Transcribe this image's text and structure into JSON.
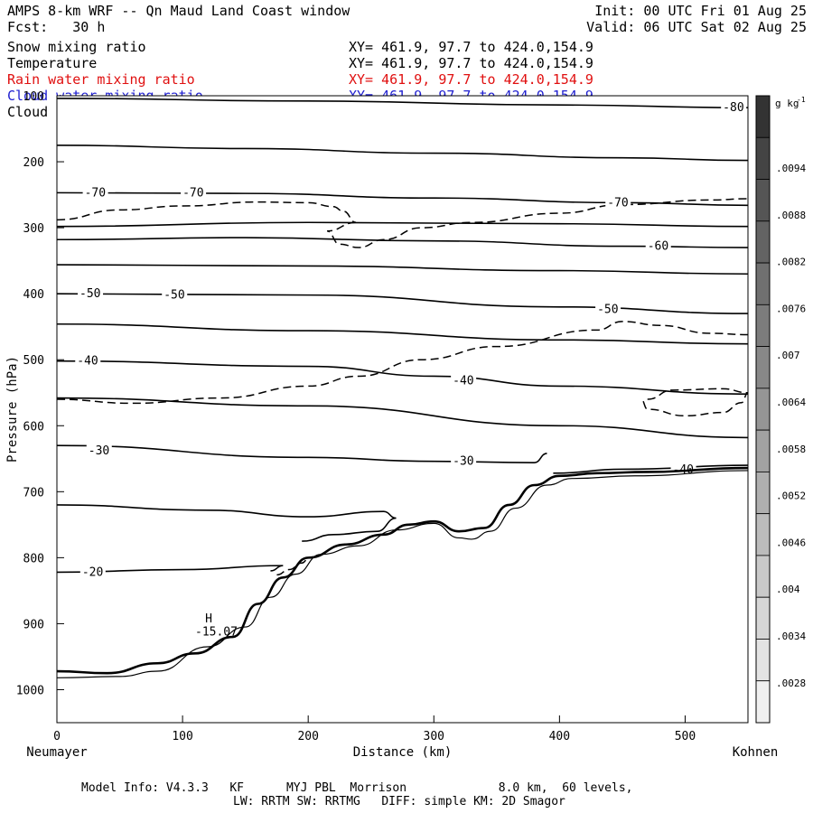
{
  "header": {
    "title": "AMPS 8-km WRF -- Qn Maud Land Coast window",
    "init": "Init: 00 UTC Fri 01 Aug 25",
    "fcst": "Fcst:   30 h",
    "valid": "Valid: 06 UTC Sat 02 Aug 25"
  },
  "fields": [
    {
      "name": "Snow mixing ratio",
      "xy": "XY= 461.9, 97.7 to 424.0,154.9",
      "color": "#000000"
    },
    {
      "name": "Temperature",
      "xy": "XY= 461.9, 97.7 to 424.0,154.9",
      "color": "#000000"
    },
    {
      "name": "Rain water mixing ratio",
      "xy": "XY= 461.9, 97.7 to 424.0,154.9",
      "color": "#e01010"
    },
    {
      "name": "Cloud water mixing ratio",
      "xy": "XY= 461.9, 97.7 to 424.0,154.9",
      "color": "#2020d0"
    },
    {
      "name": "Cloud ice mixing ratio",
      "xy": "XY= 461.9, 97.7 to 424.0,154.9",
      "color": "#000000"
    }
  ],
  "footer": {
    "line1": "Model Info: V4.3.3   KF      MYJ PBL  Morrison             8.0 km,  60 levels,",
    "line2": "LW: RRTM SW: RRTMG   DIFF: simple KM: 2D Smagor"
  },
  "chart_data": {
    "type": "contour",
    "xlabel": "Distance (km)",
    "ylabel": "Pressure (hPa)",
    "xlim": [
      0,
      550
    ],
    "ylim": [
      1050,
      100
    ],
    "x_ticks": [
      0,
      100,
      200,
      300,
      400,
      500
    ],
    "y_ticks": [
      100,
      200,
      300,
      400,
      500,
      600,
      700,
      800,
      900,
      1000
    ],
    "x_end_labels": {
      "left": "Neumayer",
      "right": "Kohnen"
    },
    "colorbar": {
      "unit": "g kg",
      "unit_exp": "-1",
      "ticks": [
        ".0094",
        ".0088",
        ".0082",
        ".0076",
        ".007",
        ".0064",
        ".0058",
        ".0052",
        ".0046",
        ".004",
        ".0034",
        ".0028"
      ],
      "grays": [
        "#333333",
        "#444444",
        "#555555",
        "#636363",
        "#707070",
        "#7c7c7c",
        "#888888",
        "#959595",
        "#a2a2a2",
        "#afafaf",
        "#bcbcbc",
        "#c9c9c9",
        "#d6d6d6",
        "#e3e3e3",
        "#f0f0f0"
      ]
    },
    "isotherms": [
      {
        "label": "-80",
        "points": [
          [
            0,
            104
          ],
          [
            200,
            108
          ],
          [
            400,
            114
          ],
          [
            550,
            118
          ]
        ],
        "label_at": [
          [
            530,
            118
          ]
        ]
      },
      {
        "label": "",
        "points": [
          [
            0,
            175
          ],
          [
            150,
            180
          ],
          [
            300,
            187
          ],
          [
            450,
            194
          ],
          [
            550,
            198
          ]
        ],
        "label_at": []
      },
      {
        "label": "-70",
        "points": [
          [
            0,
            247
          ],
          [
            150,
            248
          ],
          [
            300,
            255
          ],
          [
            450,
            262
          ],
          [
            550,
            266
          ]
        ],
        "label_at": [
          [
            22,
            247
          ],
          [
            100,
            247
          ],
          [
            438,
            262
          ]
        ]
      },
      {
        "label": "",
        "points": [
          [
            0,
            298
          ],
          [
            200,
            292
          ],
          [
            400,
            294
          ],
          [
            550,
            298
          ]
        ],
        "label_at": []
      },
      {
        "label": "-60",
        "points": [
          [
            0,
            318
          ],
          [
            150,
            315
          ],
          [
            300,
            320
          ],
          [
            450,
            328
          ],
          [
            550,
            330
          ]
        ],
        "label_at": [
          [
            470,
            328
          ]
        ]
      },
      {
        "label": "",
        "points": [
          [
            0,
            356
          ],
          [
            200,
            358
          ],
          [
            400,
            365
          ],
          [
            550,
            370
          ]
        ],
        "label_at": []
      },
      {
        "label": "-50",
        "points": [
          [
            0,
            400
          ],
          [
            200,
            402
          ],
          [
            400,
            420
          ],
          [
            550,
            430
          ]
        ],
        "label_at": [
          [
            18,
            400
          ],
          [
            85,
            402
          ],
          [
            430,
            424
          ]
        ]
      },
      {
        "label": "",
        "points": [
          [
            0,
            446
          ],
          [
            200,
            456
          ],
          [
            400,
            470
          ],
          [
            550,
            476
          ]
        ],
        "label_at": []
      },
      {
        "label": "-40",
        "points": [
          [
            0,
            502
          ],
          [
            200,
            510
          ],
          [
            300,
            525
          ],
          [
            400,
            540
          ],
          [
            550,
            552
          ]
        ],
        "label_at": [
          [
            16,
            502
          ],
          [
            315,
            532
          ]
        ]
      },
      {
        "label": "",
        "points": [
          [
            0,
            558
          ],
          [
            200,
            570
          ],
          [
            400,
            600
          ],
          [
            550,
            618
          ]
        ],
        "label_at": []
      },
      {
        "label": "-30",
        "points": [
          [
            0,
            630
          ],
          [
            200,
            648
          ],
          [
            300,
            654
          ],
          [
            380,
            656
          ],
          [
            390,
            642
          ]
        ],
        "label_at": [
          [
            25,
            638
          ],
          [
            315,
            654
          ]
        ]
      },
      {
        "label": "-40",
        "points": [
          [
            395,
            672
          ],
          [
            450,
            666
          ],
          [
            550,
            660
          ]
        ],
        "label_at": [
          [
            490,
            667
          ]
        ]
      },
      {
        "label": "",
        "points": [
          [
            0,
            720
          ],
          [
            120,
            728
          ],
          [
            200,
            738
          ],
          [
            260,
            730
          ],
          [
            270,
            740
          ],
          [
            255,
            760
          ],
          [
            220,
            765
          ],
          [
            195,
            775
          ]
        ],
        "label_at": []
      },
      {
        "label": "-20",
        "points": [
          [
            0,
            822
          ],
          [
            100,
            818
          ],
          [
            180,
            812
          ],
          [
            170,
            820
          ]
        ],
        "label_at": [
          [
            20,
            822
          ]
        ]
      }
    ],
    "snow_contours": [
      [
        [
          0,
          288
        ],
        [
          50,
          273
        ],
        [
          100,
          267
        ],
        [
          160,
          261
        ],
        [
          200,
          262
        ],
        [
          220,
          268
        ],
        [
          228,
          275
        ],
        [
          238,
          292
        ]
      ],
      [
        [
          238,
          292
        ],
        [
          215,
          305
        ],
        [
          225,
          325
        ],
        [
          240,
          330
        ],
        [
          260,
          318
        ],
        [
          290,
          300
        ],
        [
          330,
          292
        ],
        [
          400,
          278
        ],
        [
          450,
          265
        ],
        [
          520,
          258
        ],
        [
          550,
          256
        ]
      ],
      [
        [
          0,
          560
        ],
        [
          60,
          566
        ],
        [
          130,
          558
        ],
        [
          200,
          540
        ],
        [
          240,
          525
        ],
        [
          290,
          500
        ],
        [
          350,
          480
        ],
        [
          430,
          455
        ],
        [
          450,
          442
        ],
        [
          480,
          448
        ],
        [
          520,
          460
        ],
        [
          550,
          462
        ]
      ],
      [
        [
          470,
          560
        ],
        [
          490,
          546
        ],
        [
          530,
          544
        ],
        [
          550,
          550
        ],
        [
          545,
          565
        ],
        [
          530,
          580
        ],
        [
          500,
          585
        ],
        [
          470,
          575
        ],
        [
          465,
          560
        ]
      ],
      [
        [
          175,
          826
        ],
        [
          185,
          818
        ],
        [
          195,
          808
        ],
        [
          200,
          802
        ]
      ]
    ],
    "terrain": [
      [
        0,
        972
      ],
      [
        40,
        975
      ],
      [
        80,
        960
      ],
      [
        110,
        945
      ],
      [
        140,
        920
      ],
      [
        160,
        870
      ],
      [
        180,
        830
      ],
      [
        200,
        800
      ],
      [
        230,
        780
      ],
      [
        260,
        765
      ],
      [
        280,
        750
      ],
      [
        300,
        745
      ],
      [
        320,
        760
      ],
      [
        340,
        755
      ],
      [
        360,
        720
      ],
      [
        380,
        690
      ],
      [
        400,
        676
      ],
      [
        430,
        672
      ],
      [
        470,
        670
      ],
      [
        550,
        664
      ]
    ],
    "terrain_lower": [
      [
        0,
        982
      ],
      [
        50,
        980
      ],
      [
        80,
        972
      ],
      [
        120,
        935
      ],
      [
        150,
        905
      ],
      [
        170,
        860
      ],
      [
        190,
        825
      ],
      [
        210,
        795
      ],
      [
        240,
        782
      ],
      [
        270,
        758
      ],
      [
        300,
        748
      ],
      [
        320,
        770
      ],
      [
        330,
        772
      ],
      [
        345,
        760
      ],
      [
        365,
        725
      ],
      [
        390,
        690
      ],
      [
        410,
        680
      ],
      [
        460,
        676
      ],
      [
        550,
        668
      ]
    ],
    "annotations": [
      {
        "text": "H",
        "x": 118,
        "y": 898
      },
      {
        "text": "-15.07",
        "x": 110,
        "y": 918
      }
    ]
  }
}
